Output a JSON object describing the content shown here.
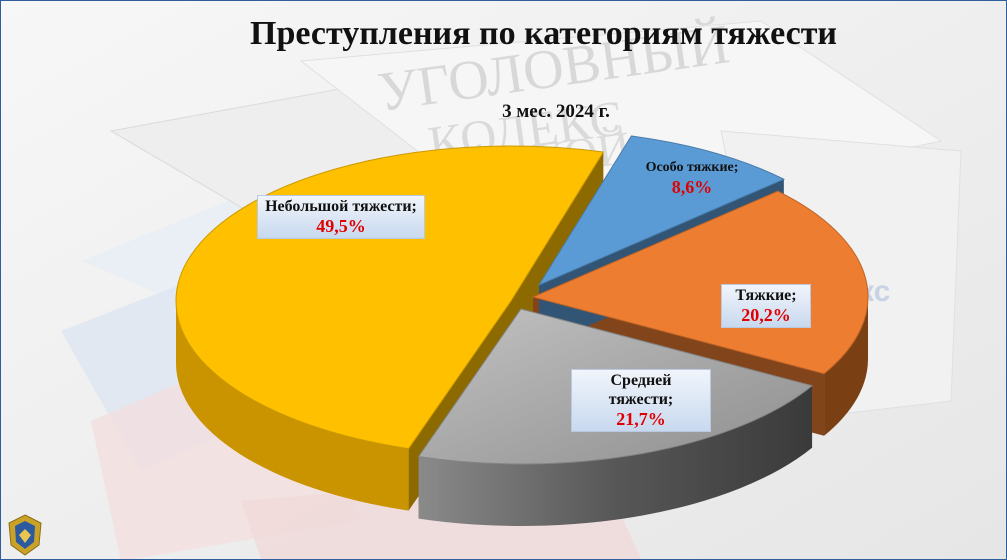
{
  "title": "Преступления по категориям тяжести",
  "subtitle": "3 мес. 2024 г.",
  "background_texts": [
    "УГОЛОВНЫЙ",
    "КОДЕКС",
    "РОССИЙСКОЙ",
    "кс"
  ],
  "chart_data": {
    "type": "pie",
    "title": "Преступления по категориям тяжести",
    "subtitle": "3 мес. 2024 г.",
    "slices": [
      {
        "label": "Особо тяжкие;",
        "value": 8.6,
        "display": "8,6%",
        "color": "#5b9bd5",
        "exploded": true
      },
      {
        "label": "Тяжкие;",
        "value": 20.2,
        "display": "20,2%",
        "color": "#ed7d31",
        "exploded": false
      },
      {
        "label": "Средней тяжести;",
        "value": 21.7,
        "display": "21,7%",
        "color": "#a5a5a5",
        "exploded": false
      },
      {
        "label": "Небольшой тяжести;",
        "value": 49.5,
        "display": "49,5%",
        "color": "#ffc000",
        "exploded": false
      }
    ],
    "legend": "none",
    "style": "3d-exploded"
  }
}
